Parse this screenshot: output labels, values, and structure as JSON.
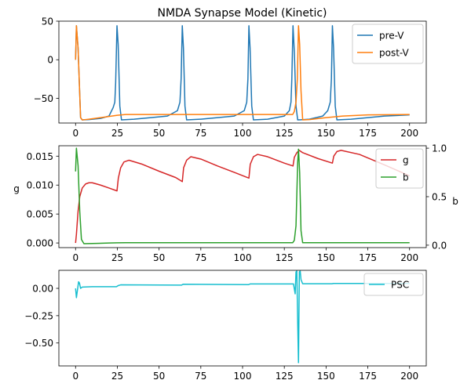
{
  "title": "NMDA Synapse Model (Kinetic)",
  "colors": {
    "blue": "#1f77b4",
    "orange": "#ff7f0e",
    "red": "#d62728",
    "green": "#2ca02c",
    "cyan": "#17becf"
  },
  "chart_data": [
    {
      "type": "line",
      "title": "NMDA Synapse Model (Kinetic)",
      "xlim": [
        -10,
        210
      ],
      "ylim": [
        -82,
        50
      ],
      "xticks": [
        "0",
        "25",
        "50",
        "75",
        "100",
        "125",
        "150",
        "175",
        "200"
      ],
      "yticks": [
        "50",
        "0",
        "−50"
      ],
      "ytick_values": [
        50,
        0,
        -50
      ],
      "legend": "top-right",
      "grid": false,
      "series": [
        {
          "name": "pre-V",
          "color": "#1f77b4",
          "points": [
            [
              0,
              0
            ],
            [
              0.5,
              44
            ],
            [
              1.5,
              15
            ],
            [
              3,
              -75
            ],
            [
              4,
              -78
            ],
            [
              8,
              -77.5
            ],
            [
              15,
              -76
            ],
            [
              20,
              -73
            ],
            [
              22.5,
              -62
            ],
            [
              23.5,
              -55
            ],
            [
              24,
              -30
            ],
            [
              24.8,
              44
            ],
            [
              25.5,
              20
            ],
            [
              26.5,
              -60
            ],
            [
              27.5,
              -78
            ],
            [
              35,
              -77
            ],
            [
              45,
              -75
            ],
            [
              55,
              -73
            ],
            [
              61,
              -66
            ],
            [
              62.5,
              -55
            ],
            [
              63.2,
              -25
            ],
            [
              63.9,
              44
            ],
            [
              64.6,
              15
            ],
            [
              65.5,
              -60
            ],
            [
              66.5,
              -78
            ],
            [
              75,
              -77
            ],
            [
              85,
              -75
            ],
            [
              95,
              -73
            ],
            [
              101,
              -66
            ],
            [
              102.5,
              -55
            ],
            [
              103.2,
              -25
            ],
            [
              103.8,
              44
            ],
            [
              104.5,
              15
            ],
            [
              105.5,
              -60
            ],
            [
              106.5,
              -78
            ],
            [
              115,
              -77
            ],
            [
              125,
              -73
            ],
            [
              128,
              -66
            ],
            [
              129,
              -55
            ],
            [
              129.5,
              -25
            ],
            [
              130.2,
              44
            ],
            [
              131,
              10
            ],
            [
              132,
              -60
            ],
            [
              133,
              -78
            ],
            [
              140,
              -77
            ],
            [
              148,
              -73
            ],
            [
              151,
              -66
            ],
            [
              152.5,
              -55
            ],
            [
              153.2,
              -25
            ],
            [
              153.8,
              44
            ],
            [
              154.5,
              15
            ],
            [
              155.5,
              -60
            ],
            [
              156.5,
              -78
            ],
            [
              165,
              -77
            ],
            [
              175,
              -75
            ],
            [
              185,
              -73
            ],
            [
              195,
              -72
            ],
            [
              200,
              -71.5
            ]
          ]
        },
        {
          "name": "post-V",
          "color": "#ff7f0e",
          "points": [
            [
              0,
              0
            ],
            [
              0.5,
              44
            ],
            [
              1.5,
              15
            ],
            [
              3,
              -75
            ],
            [
              4,
              -78
            ],
            [
              8,
              -77
            ],
            [
              15,
              -75
            ],
            [
              25,
              -72
            ],
            [
              30,
              -71
            ],
            [
              130,
              -71
            ],
            [
              131,
              -67
            ],
            [
              132,
              -55
            ],
            [
              132.8,
              -25
            ],
            [
              133.5,
              44
            ],
            [
              134.2,
              20
            ],
            [
              135,
              -40
            ],
            [
              136,
              -78
            ],
            [
              140,
              -77.5
            ],
            [
              150,
              -75
            ],
            [
              160,
              -73
            ],
            [
              175,
              -71.5
            ],
            [
              200,
              -71
            ]
          ]
        }
      ]
    },
    {
      "type": "line",
      "xlim": [
        -10,
        210
      ],
      "ylim": [
        -0.0008,
        0.0168
      ],
      "ylabel": "g",
      "y2label": "b",
      "y2lim": [
        -0.025,
        1.025
      ],
      "xticks": [
        "0",
        "25",
        "50",
        "75",
        "100",
        "125",
        "150",
        "175",
        "200"
      ],
      "yticks": [
        "0.015",
        "0.010",
        "0.005",
        "0.000"
      ],
      "ytick_values": [
        0.015,
        0.01,
        0.005,
        0.0
      ],
      "y2ticks": [
        "1.0",
        "0.5",
        "0.0"
      ],
      "y2tick_values": [
        1.0,
        0.5,
        0.0
      ],
      "legend": "top-right",
      "grid": false,
      "series": [
        {
          "name": "g",
          "color": "#d62728",
          "axis": "left",
          "points": [
            [
              0,
              0
            ],
            [
              0.5,
              0.0015
            ],
            [
              1.5,
              0.0055
            ],
            [
              2.5,
              0.008
            ],
            [
              4,
              0.0095
            ],
            [
              6,
              0.0102
            ],
            [
              8,
              0.0104
            ],
            [
              10,
              0.0104
            ],
            [
              15,
              0.01
            ],
            [
              20,
              0.0095
            ],
            [
              24.8,
              0.009
            ],
            [
              25.6,
              0.0112
            ],
            [
              27,
              0.013
            ],
            [
              29,
              0.014
            ],
            [
              32,
              0.0143
            ],
            [
              40,
              0.0136
            ],
            [
              50,
              0.0124
            ],
            [
              60,
              0.0113
            ],
            [
              63.9,
              0.0106
            ],
            [
              64.7,
              0.013
            ],
            [
              66.5,
              0.0143
            ],
            [
              69,
              0.0149
            ],
            [
              75,
              0.0145
            ],
            [
              85,
              0.0133
            ],
            [
              95,
              0.0122
            ],
            [
              103.8,
              0.0112
            ],
            [
              104.6,
              0.0136
            ],
            [
              106.5,
              0.0149
            ],
            [
              109,
              0.0153
            ],
            [
              115,
              0.0149
            ],
            [
              125,
              0.0138
            ],
            [
              130.2,
              0.0133
            ],
            [
              131,
              0.0148
            ],
            [
              132.5,
              0.0156
            ],
            [
              134,
              0.016
            ],
            [
              136,
              0.0156
            ],
            [
              145,
              0.0146
            ],
            [
              153.8,
              0.0138
            ],
            [
              154.6,
              0.015
            ],
            [
              156.5,
              0.0158
            ],
            [
              159,
              0.016
            ],
            [
              170,
              0.0153
            ],
            [
              185,
              0.0135
            ],
            [
              200,
              0.0116
            ]
          ]
        },
        {
          "name": "b",
          "color": "#2ca02c",
          "axis": "right",
          "points": [
            [
              0,
              0.76
            ],
            [
              0.5,
              1.0
            ],
            [
              1.5,
              0.82
            ],
            [
              2.5,
              0.35
            ],
            [
              3.5,
              0.06
            ],
            [
              5,
              0.015
            ],
            [
              10,
              0.017
            ],
            [
              20,
              0.022
            ],
            [
              25,
              0.024
            ],
            [
              30,
              0.025
            ],
            [
              130,
              0.025
            ],
            [
              131,
              0.05
            ],
            [
              132,
              0.2
            ],
            [
              133,
              0.85
            ],
            [
              133.5,
              0.99
            ],
            [
              134.2,
              0.75
            ],
            [
              135,
              0.15
            ],
            [
              136,
              0.025
            ],
            [
              145,
              0.025
            ],
            [
              200,
              0.025
            ]
          ]
        }
      ]
    },
    {
      "type": "line",
      "xlim": [
        -10,
        210
      ],
      "ylim": [
        -0.71,
        0.165
      ],
      "xticks": [
        "0",
        "25",
        "50",
        "75",
        "100",
        "125",
        "150",
        "175",
        "200"
      ],
      "yticks": [
        "0.00",
        "−0.25",
        "−0.50"
      ],
      "ytick_values": [
        0,
        -0.25,
        -0.5
      ],
      "legend": "top-right",
      "grid": false,
      "series": [
        {
          "name": "PSC",
          "color": "#17becf",
          "points": [
            [
              0,
              0
            ],
            [
              0.5,
              -0.085
            ],
            [
              1,
              -0.03
            ],
            [
              1.8,
              0.06
            ],
            [
              2.3,
              0.05
            ],
            [
              3,
              0.0
            ],
            [
              4,
              0.012
            ],
            [
              10,
              0.015
            ],
            [
              24.5,
              0.015
            ],
            [
              25.5,
              0.025
            ],
            [
              27,
              0.032
            ],
            [
              63.5,
              0.03
            ],
            [
              64.5,
              0.038
            ],
            [
              103.5,
              0.034
            ],
            [
              104.5,
              0.04
            ],
            [
              129.5,
              0.04
            ],
            [
              130.5,
              0.04
            ],
            [
              131.5,
              -0.05
            ],
            [
              132,
              0.15
            ],
            [
              132.5,
              0.16
            ],
            [
              133,
              -0.3
            ],
            [
              133.5,
              -0.68
            ],
            [
              134,
              0.15
            ],
            [
              134.5,
              0.16
            ],
            [
              135,
              0.08
            ],
            [
              136,
              0.042
            ],
            [
              153.5,
              0.042
            ],
            [
              154.5,
              0.045
            ],
            [
              200,
              0.045
            ]
          ]
        }
      ]
    }
  ]
}
